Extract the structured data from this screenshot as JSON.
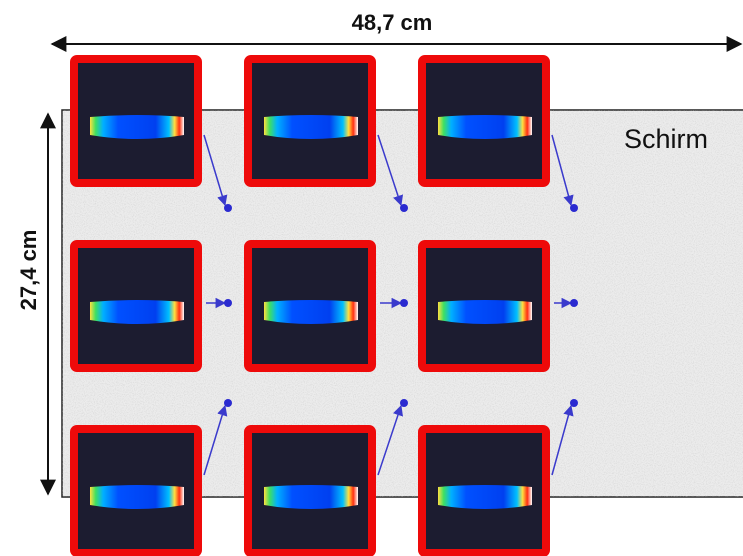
{
  "dimensions": {
    "width_label": "48,7 cm",
    "height_label": "27,4 cm"
  },
  "screen": {
    "label": "Schirm"
  }
}
